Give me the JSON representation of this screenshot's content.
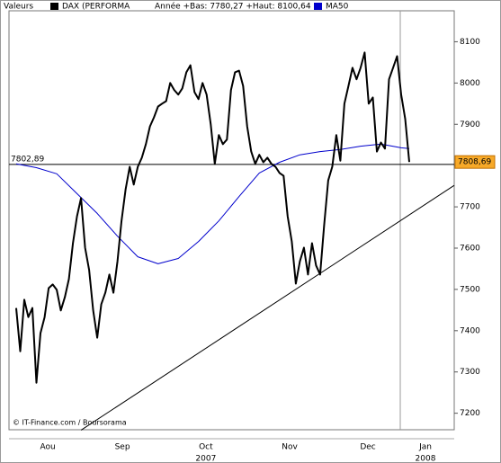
{
  "chart_data": {
    "type": "line",
    "header": "Valeurs",
    "annotation": "Année +Bas: 7780,27 +Haut: 8100,64",
    "footer": "© IT-Finance.com / Boursorama",
    "series": [
      {
        "name": "DAX (PERFORMA",
        "color": "#000000",
        "values": [
          7455,
          7350,
          7475,
          7433,
          7455,
          7274,
          7394,
          7433,
          7503,
          7512,
          7499,
          7449,
          7481,
          7525,
          7612,
          7677,
          7721,
          7601,
          7547,
          7449,
          7383,
          7464,
          7492,
          7536,
          7492,
          7568,
          7666,
          7743,
          7797,
          7754,
          7797,
          7819,
          7852,
          7895,
          7917,
          7943,
          7950,
          7956,
          8000,
          7983,
          7972,
          7987,
          8026,
          8043,
          7978,
          7961,
          8000,
          7972,
          7900,
          7804,
          7874,
          7852,
          7863,
          7983,
          8026,
          8030,
          7993,
          7895,
          7834,
          7804,
          7826,
          7808,
          7819,
          7804,
          7797,
          7782,
          7775,
          7677,
          7616,
          7514,
          7568,
          7601,
          7536,
          7612,
          7558,
          7536,
          7656,
          7764,
          7797,
          7874,
          7812,
          7950,
          7993,
          8037,
          8009,
          8037,
          8074,
          7950,
          7965,
          7834,
          7856,
          7841,
          8009,
          8037,
          8065,
          7972,
          7913,
          7808.69
        ]
      },
      {
        "name": "MA50",
        "color": "#0000cc",
        "x": [
          0,
          5,
          10,
          15,
          20,
          25,
          30,
          35,
          40,
          45,
          50,
          55,
          60,
          65,
          70,
          75,
          80,
          85,
          90,
          95,
          97
        ],
        "values": [
          7804,
          7795,
          7780,
          7732,
          7684,
          7629,
          7579,
          7562,
          7575,
          7616,
          7666,
          7725,
          7782,
          7808,
          7826,
          7834,
          7839,
          7847,
          7852,
          7843,
          7841
        ]
      }
    ],
    "trendline": {
      "x": [
        16,
        108.1
      ],
      "values": [
        7159,
        7752
      ]
    },
    "hline": {
      "value": 7802.89,
      "label": "7802,89"
    },
    "last_label": {
      "value": 7808.69,
      "label": "7808,69"
    },
    "xlim": [
      -1.78,
      108.1
    ],
    "xticks": [
      {
        "value": 7.8,
        "label": "Aou"
      },
      {
        "value": 26.2,
        "label": "Sep"
      },
      {
        "value": 46.8,
        "label": "Oct"
      },
      {
        "value": 67.5,
        "label": "Nov"
      },
      {
        "value": 86.8,
        "label": "Dec"
      },
      {
        "value": 101,
        "label": "Jan"
      }
    ],
    "year_ticks": [
      {
        "value": 46.8,
        "label": "2007"
      },
      {
        "value": 101,
        "label": "2008"
      }
    ],
    "ylim": [
      7160,
      8175
    ],
    "yticks": [
      7200,
      7300,
      7400,
      7500,
      7600,
      7700,
      7800,
      7900,
      8000,
      8100
    ]
  }
}
